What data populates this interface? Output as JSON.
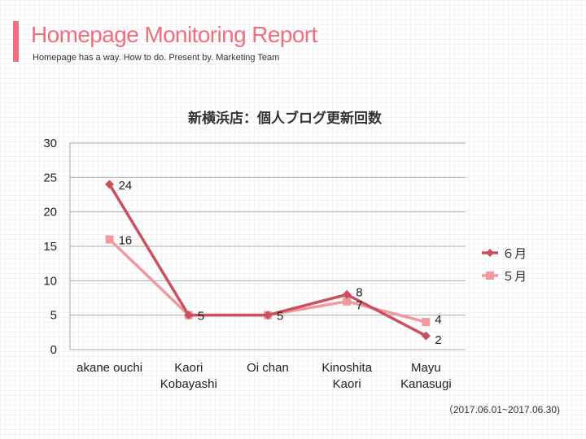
{
  "header": {
    "title": "Homepage Monitoring Report",
    "subtitle": "Homepage has a way. How to do. Present by. Marketing Team"
  },
  "footer": {
    "period": "（2017.06.01~2017.06.30)"
  },
  "colors": {
    "accent": "#f26d7d",
    "title": "#ef6f7f",
    "series_june": "#c8505f",
    "series_may": "#f0999f"
  },
  "chart_data": {
    "type": "line",
    "title": "新横浜店：個人ブログ更新回数",
    "categories": [
      [
        "akane ouchi"
      ],
      [
        "Kaori",
        "Kobayashi"
      ],
      [
        "Oi chan"
      ],
      [
        "Kinoshita",
        "Kaori"
      ],
      [
        "Mayu",
        "Kanasugi"
      ]
    ],
    "series": [
      {
        "name": "６月",
        "values": [
          24,
          5,
          5,
          8,
          2
        ],
        "color": "#c8505f",
        "marker": "diamond"
      },
      {
        "name": "５月",
        "values": [
          16,
          5,
          5,
          7,
          4
        ],
        "color": "#f0999f",
        "marker": "square"
      }
    ],
    "ylim": [
      0,
      30
    ],
    "yticks": [
      0,
      5,
      10,
      15,
      20,
      25,
      30
    ],
    "grid": true,
    "legend": "right",
    "data_labels": true
  }
}
